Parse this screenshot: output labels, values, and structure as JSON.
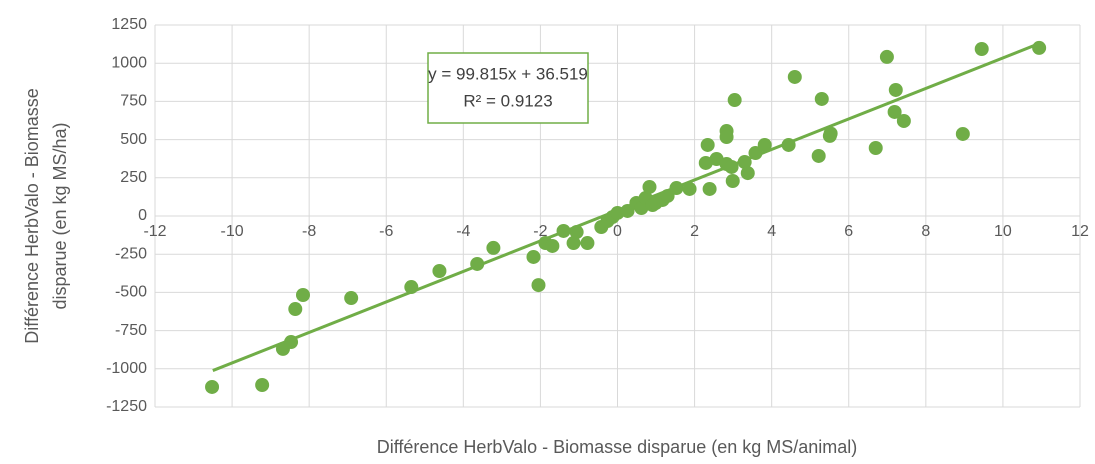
{
  "chart_data": {
    "type": "scatter",
    "x_label": "Différence HerbValo - Biomasse disparue (en kg MS/animal)",
    "y_label": [
      "Différence HerbValo - Biomasse",
      "disparue (en kg MS/ha)"
    ],
    "color": "#70ad47",
    "grid": true,
    "xlim": [
      -12,
      12
    ],
    "xticks": [
      -12,
      -10,
      -8,
      -6,
      -4,
      -2,
      0,
      2,
      4,
      6,
      8,
      10,
      12
    ],
    "ylim": [
      -1250,
      1250
    ],
    "yticks": [
      -1250,
      -1000,
      -750,
      -500,
      -250,
      0,
      250,
      500,
      750,
      1000,
      1250
    ],
    "x": [
      -10.52,
      -9.22,
      -8.68,
      -8.47,
      -8.36,
      -8.16,
      -6.91,
      -5.35,
      -4.62,
      -3.64,
      -3.22,
      -2.18,
      -2.05,
      -1.87,
      -1.69,
      -1.4,
      -1.14,
      -1.06,
      -0.78,
      -0.42,
      -0.26,
      -0.13,
      0,
      0.26,
      0.49,
      0.62,
      0.73,
      0.83,
      0.91,
      0.99,
      1.17,
      1.3,
      1.53,
      1.87,
      2.29,
      2.34,
      2.39,
      2.57,
      2.83,
      2.83,
      2.83,
      2.96,
      2.99,
      3.04,
      3.3,
      3.38,
      3.58,
      3.82,
      4.44,
      4.6,
      5.22,
      5.3,
      5.51,
      5.53,
      6.7,
      6.99,
      7.19,
      7.22,
      7.43,
      8.96,
      9.45,
      10.94
    ],
    "values": [
      -1119,
      -1106,
      -870,
      -825,
      -609,
      -517,
      -537,
      -465,
      -360,
      -314,
      -209,
      -268,
      -452,
      -177,
      -196,
      -98,
      -177,
      -105,
      -177,
      -72,
      -33,
      -7,
      20,
      33,
      85,
      52,
      118,
      190,
      72,
      85,
      105,
      131,
      183,
      177,
      347,
      465,
      177,
      373,
      556,
      517,
      340,
      321,
      229,
      759,
      353,
      281,
      412,
      465,
      465,
      910,
      393,
      766,
      524,
      540,
      445,
      1041,
      681,
      825,
      622,
      537,
      1093,
      1100
    ],
    "trendline": {
      "slope": 99.815,
      "intercept": 36.519,
      "xlim": [
        -10.5,
        10.94
      ],
      "label": "y = 99.815x + 36.519",
      "r2_label": "R² = 0.9123"
    }
  }
}
